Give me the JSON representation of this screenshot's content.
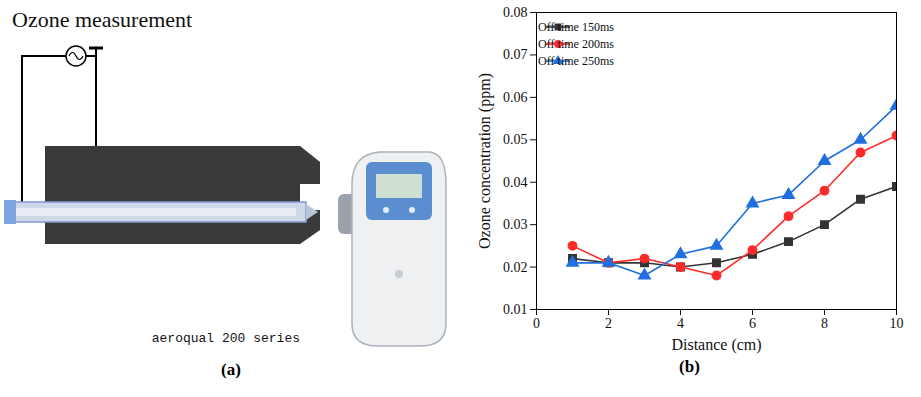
{
  "chart_data": {
    "type": "line",
    "panel_label": "(b)",
    "x_label": "Distance (cm)",
    "y_label": "Ozone concentration (ppm)",
    "x": [
      1,
      2,
      3,
      4,
      5,
      6,
      7,
      8,
      9,
      10
    ],
    "series": [
      {
        "name": "Off time 150ms",
        "color": "#333333",
        "marker": "square",
        "line_style": "solid",
        "values": [
          0.022,
          0.021,
          0.021,
          0.02,
          0.021,
          0.023,
          0.026,
          0.03,
          0.036,
          0.039
        ]
      },
      {
        "name": "Off time 200ms",
        "color": "#ff2a2a",
        "marker": "circle",
        "line_style": "solid",
        "values": [
          0.025,
          0.021,
          0.022,
          0.02,
          0.018,
          0.024,
          0.032,
          0.038,
          0.047,
          0.051
        ]
      },
      {
        "name": "Off time 250ms",
        "color": "#1f6fe0",
        "marker": "triangle",
        "line_style": "solid",
        "values": [
          0.021,
          0.021,
          0.018,
          0.023,
          0.025,
          0.035,
          0.037,
          0.045,
          0.05,
          0.058
        ]
      }
    ],
    "xlim": [
      0,
      10
    ],
    "xticks": [
      0,
      2,
      4,
      6,
      8,
      10
    ],
    "ylim": [
      0.01,
      0.08
    ],
    "yticks": [
      0.01,
      0.02,
      0.03,
      0.04,
      0.05,
      0.06,
      0.07,
      0.08
    ],
    "grid": false,
    "legend": "upper left"
  },
  "diagram": {
    "title": "Ozone measurement",
    "device_label": "aeroqual 200 series",
    "panel_label": "(a)"
  }
}
